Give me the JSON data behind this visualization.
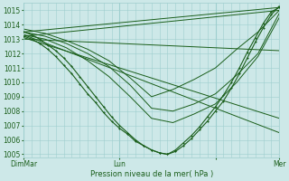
{
  "xlabel": "Pression niveau de la mer( hPa )",
  "bg_color": "#cde8e8",
  "grid_color": "#9ecece",
  "line_color": "#1a5e1a",
  "ylim": [
    1004.8,
    1015.5
  ],
  "xlim": [
    0,
    96
  ],
  "x_ticks": [
    0,
    36,
    72,
    96
  ],
  "x_tick_labels": [
    "DimMar",
    "Lun",
    "",
    "Mer"
  ],
  "y_ticks": [
    1005,
    1006,
    1007,
    1008,
    1009,
    1010,
    1011,
    1012,
    1013,
    1014,
    1015
  ],
  "straight_lines": [
    {
      "x": [
        0,
        96
      ],
      "y": [
        1013.5,
        1015.2
      ]
    },
    {
      "x": [
        0,
        96
      ],
      "y": [
        1013.2,
        1015.0
      ]
    },
    {
      "x": [
        0,
        96
      ],
      "y": [
        1013.0,
        1012.2
      ]
    },
    {
      "x": [
        0,
        96
      ],
      "y": [
        1013.1,
        1007.5
      ]
    },
    {
      "x": [
        0,
        96
      ],
      "y": [
        1013.3,
        1006.5
      ]
    }
  ],
  "curved_lines": [
    [
      0,
      8,
      16,
      24,
      32,
      40,
      48,
      56,
      64,
      72,
      80,
      88,
      96
    ],
    [
      1013.7,
      1013.4,
      1012.9,
      1012.3,
      1011.5,
      1010.3,
      1009.0,
      1009.5,
      1010.2,
      1011.0,
      1012.3,
      1013.5,
      1015.0
    ],
    [
      1013.5,
      1013.2,
      1012.7,
      1012.0,
      1011.1,
      1009.8,
      1008.2,
      1008.0,
      1008.5,
      1009.2,
      1010.5,
      1012.0,
      1014.8
    ],
    [
      1013.3,
      1013.0,
      1012.4,
      1011.5,
      1010.4,
      1009.0,
      1007.5,
      1007.2,
      1007.8,
      1008.5,
      1010.0,
      1011.8,
      1014.5
    ]
  ],
  "dense_line_x": [
    0,
    3,
    6,
    9,
    12,
    15,
    18,
    21,
    24,
    27,
    30,
    33,
    36,
    39,
    42,
    45,
    48,
    51,
    54,
    57,
    60,
    63,
    66,
    69,
    72,
    75,
    78,
    81,
    84,
    87,
    90,
    93,
    96
  ],
  "dense_line_y": [
    1013.5,
    1013.3,
    1013.0,
    1012.6,
    1012.2,
    1011.7,
    1011.1,
    1010.4,
    1009.7,
    1009.0,
    1008.3,
    1007.6,
    1007.0,
    1006.5,
    1006.0,
    1005.6,
    1005.3,
    1005.1,
    1005.0,
    1005.2,
    1005.6,
    1006.1,
    1006.7,
    1007.3,
    1008.0,
    1008.7,
    1009.6,
    1010.6,
    1011.7,
    1012.8,
    1013.8,
    1014.7,
    1015.3
  ],
  "dense_line2_x": [
    0,
    3,
    6,
    9,
    12,
    15,
    18,
    21,
    24,
    27,
    30,
    33,
    36,
    39,
    42,
    45,
    48,
    51,
    54,
    57,
    60,
    63,
    66,
    69,
    72,
    75,
    78,
    81,
    84,
    87,
    90,
    93,
    96
  ],
  "dense_line2_y": [
    1013.2,
    1013.0,
    1012.7,
    1012.3,
    1011.8,
    1011.2,
    1010.6,
    1009.9,
    1009.2,
    1008.6,
    1007.9,
    1007.3,
    1006.8,
    1006.4,
    1005.9,
    1005.6,
    1005.3,
    1005.1,
    1005.0,
    1005.3,
    1005.8,
    1006.3,
    1006.9,
    1007.6,
    1008.3,
    1009.1,
    1010.0,
    1011.0,
    1012.1,
    1013.1,
    1014.1,
    1014.9,
    1015.2
  ]
}
